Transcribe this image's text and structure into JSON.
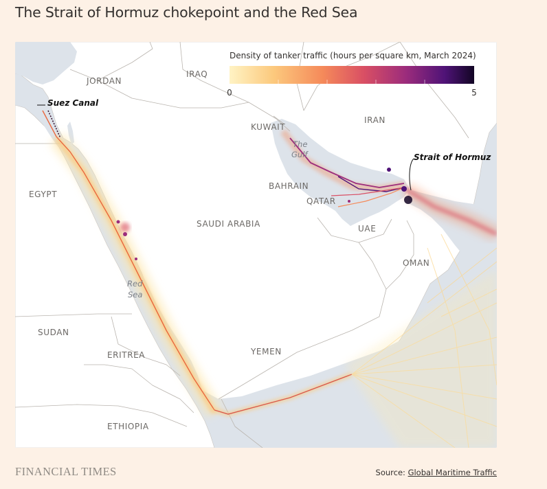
{
  "title": "The Strait of Hormuz chokepoint and the Red Sea",
  "legend": {
    "title": "Density of tanker traffic (hours per square km, March 2024)",
    "min_label": "0",
    "max_label": "5",
    "colors": [
      "#fff3c4",
      "#fcc97d",
      "#f58a5a",
      "#d94f64",
      "#9c2c7c",
      "#4f1377",
      "#120524"
    ]
  },
  "countries": {
    "iraq": "IRAQ",
    "jordan": "JORDAN",
    "kuwait": "KUWAIT",
    "iran": "IRAN",
    "bahrain": "BAHRAIN",
    "qatar": "QATAR",
    "uae": "UAE",
    "oman": "OMAN",
    "egypt": "EGYPT",
    "saudi_arabia": "SAUDI ARABIA",
    "sudan": "SUDAN",
    "eritrea": "ERITREA",
    "yemen": "YEMEN",
    "ethiopia": "ETHIOPIA"
  },
  "water": {
    "gulf_line1": "The",
    "gulf_line2": "Gulf",
    "red_sea_line1": "Red",
    "red_sea_line2": "Sea"
  },
  "callouts": {
    "suez": "Suez Canal",
    "hormuz": "Strait of Hormuz"
  },
  "footer": {
    "brand": "FINANCIAL TIMES",
    "source_prefix": "Source: ",
    "source_link": "Global Maritime Traffic"
  },
  "colors": {
    "background": "#fdf1e6",
    "land": "#ffffff",
    "sea": "#dde3ea",
    "border": "#b9b4ae"
  }
}
